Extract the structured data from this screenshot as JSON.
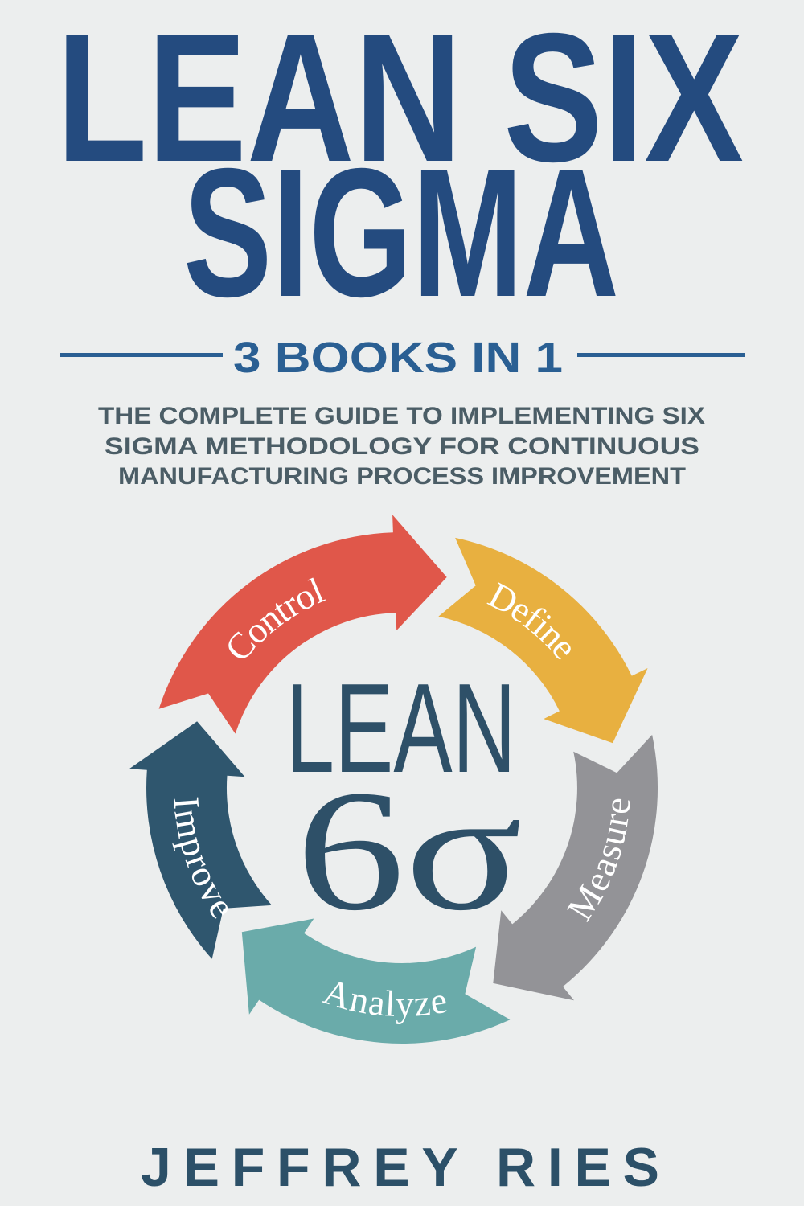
{
  "cover": {
    "title_line1": "LEAN SIX",
    "title_line2": "SIGMA",
    "tagline": "3 BOOKS IN 1",
    "subtitle": [
      "THE COMPLETE GUIDE TO IMPLEMENTING SIX",
      "SIGMA METHODOLOGY FOR CONTINUOUS",
      "MANUFACTURING PROCESS IMPROVEMENT"
    ],
    "author": "JEFFREY RIES"
  },
  "diagram": {
    "center_top": "LEAN",
    "center_bottom": "6σ",
    "phases": [
      {
        "label": "Control",
        "color": "#e0574a"
      },
      {
        "label": "Define",
        "color": "#e8b040"
      },
      {
        "label": "Measure",
        "color": "#939397"
      },
      {
        "label": "Analyze",
        "color": "#6aabaa"
      },
      {
        "label": "Improve",
        "color": "#2f566e"
      }
    ]
  },
  "colors": {
    "background": "#eceeee",
    "title": "#244b7f",
    "tagline": "#2a5f93",
    "subtitle": "#4b5d66",
    "center_text": "#2e5068",
    "author": "#2c5068"
  }
}
